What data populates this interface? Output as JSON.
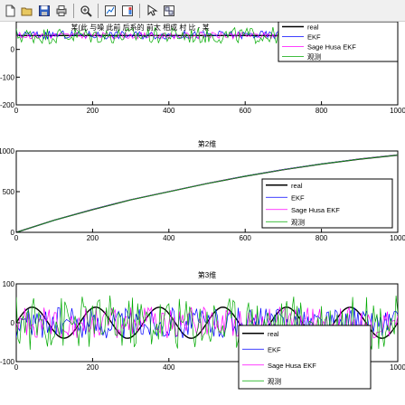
{
  "toolbar": {
    "buttons": [
      {
        "name": "new-figure-icon"
      },
      {
        "name": "open-file-icon"
      },
      {
        "name": "save-figure-icon"
      },
      {
        "name": "print-figure-icon"
      },
      {
        "sep": true
      },
      {
        "name": "zoom-in-icon"
      },
      {
        "sep": true
      },
      {
        "name": "data-cursor-icon"
      },
      {
        "name": "insert-colorbar-icon"
      },
      {
        "sep": true
      },
      {
        "name": "pointer-icon"
      },
      {
        "name": "plot-tools-icon"
      }
    ]
  },
  "colors": {
    "real": "#000000",
    "ekf": "#0000ff",
    "sage_husa": "#ff00ff",
    "observed": "#00aa00"
  },
  "chart_data": [
    {
      "type": "line",
      "title": "某(此 与噪 此前 后系的 前太 相成 村 比 - 某",
      "xlabel": "",
      "ylabel": "",
      "xlim": [
        0,
        1000
      ],
      "ylim": [
        -200,
        100
      ],
      "xticks": [
        0,
        200,
        400,
        600,
        800,
        1000
      ],
      "yticks": [
        -200,
        -100,
        0
      ],
      "xtick_labels": [
        "0",
        "200",
        "400",
        "600",
        "800",
        "1000"
      ],
      "ytick_labels": [
        "-200",
        "-100",
        "0"
      ],
      "legend": [
        "real",
        "EKF",
        "Sage Husa EKF",
        "观测"
      ],
      "legend_placement": "top-right",
      "grid": false,
      "series": [
        {
          "name": "real",
          "kind": "flat",
          "x": [
            0,
            1000
          ],
          "values": [
            50,
            50
          ]
        },
        {
          "name": "EKF",
          "kind": "noise",
          "x": [
            0,
            1000
          ],
          "values": [
            52,
            52
          ],
          "amplitude": 15
        },
        {
          "name": "Sage Husa EKF",
          "kind": "noise",
          "x": [
            0,
            1000
          ],
          "values": [
            50,
            50
          ],
          "amplitude": 12
        },
        {
          "name": "观测",
          "kind": "noise",
          "x": [
            0,
            1000
          ],
          "values": [
            50,
            50
          ],
          "amplitude": 30
        }
      ]
    },
    {
      "type": "line",
      "title": "第2维",
      "xlabel": "",
      "ylabel": "",
      "xlim": [
        0,
        1000
      ],
      "ylim": [
        0,
        1000
      ],
      "xticks": [
        0,
        200,
        400,
        600,
        800,
        1000
      ],
      "yticks": [
        0,
        500,
        1000
      ],
      "xtick_labels": [
        "0",
        "200",
        "400",
        "600",
        "800",
        "1000"
      ],
      "ytick_labels": [
        "0",
        "500",
        "1000"
      ],
      "legend": [
        "real",
        "EKF",
        "Sage Husa EKF",
        "观测"
      ],
      "legend_placement": "bottom-right",
      "grid": false,
      "series": [
        {
          "name": "real",
          "kind": "curve",
          "x": [
            0,
            100,
            200,
            300,
            400,
            500,
            600,
            700,
            800,
            900,
            1000
          ],
          "values": [
            0,
            150,
            280,
            400,
            500,
            600,
            690,
            770,
            840,
            900,
            950
          ]
        },
        {
          "name": "EKF",
          "kind": "curve",
          "x": [
            0,
            100,
            200,
            300,
            400,
            500,
            600,
            700,
            800,
            900,
            1000
          ],
          "values": [
            0,
            150,
            282,
            402,
            502,
            602,
            692,
            772,
            842,
            902,
            952
          ]
        },
        {
          "name": "Sage Husa EKF",
          "kind": "curve",
          "x": [
            0,
            100,
            200,
            300,
            400,
            500,
            600,
            700,
            800,
            900,
            1000
          ],
          "values": [
            0,
            151,
            281,
            401,
            501,
            601,
            691,
            771,
            841,
            901,
            951
          ]
        },
        {
          "name": "观测",
          "kind": "curve",
          "x": [
            0,
            100,
            200,
            300,
            400,
            500,
            600,
            700,
            800,
            900,
            1000
          ],
          "values": [
            0,
            150,
            280,
            400,
            500,
            600,
            690,
            770,
            840,
            900,
            950
          ]
        }
      ]
    },
    {
      "type": "line",
      "title": "第3维",
      "xlabel": "",
      "ylabel": "",
      "xlim": [
        0,
        1000
      ],
      "ylim": [
        -100,
        100
      ],
      "xticks": [
        0,
        200,
        400,
        600,
        800,
        1000
      ],
      "yticks": [
        -100,
        0,
        100
      ],
      "xtick_labels": [
        "0",
        "200",
        "400",
        "600",
        "800",
        "1000"
      ],
      "ytick_labels": [
        "-100",
        "0",
        "100"
      ],
      "legend": [
        "real",
        "EKF",
        "Sage Husa EKF",
        "观测"
      ],
      "legend_placement": "bottom-right",
      "grid": false,
      "series": [
        {
          "name": "real",
          "kind": "sine",
          "x": [
            0,
            1000
          ],
          "values": [
            0,
            0
          ],
          "amplitude": 40
        },
        {
          "name": "EKF",
          "kind": "noise",
          "x": [
            0,
            1000
          ],
          "values": [
            0,
            0
          ],
          "amplitude": 40
        },
        {
          "name": "Sage Husa EKF",
          "kind": "noise",
          "x": [
            0,
            1000
          ],
          "values": [
            0,
            0
          ],
          "amplitude": 40
        },
        {
          "name": "观测",
          "kind": "noise",
          "x": [
            0,
            1000
          ],
          "values": [
            0,
            0
          ],
          "amplitude": 70
        }
      ]
    }
  ]
}
